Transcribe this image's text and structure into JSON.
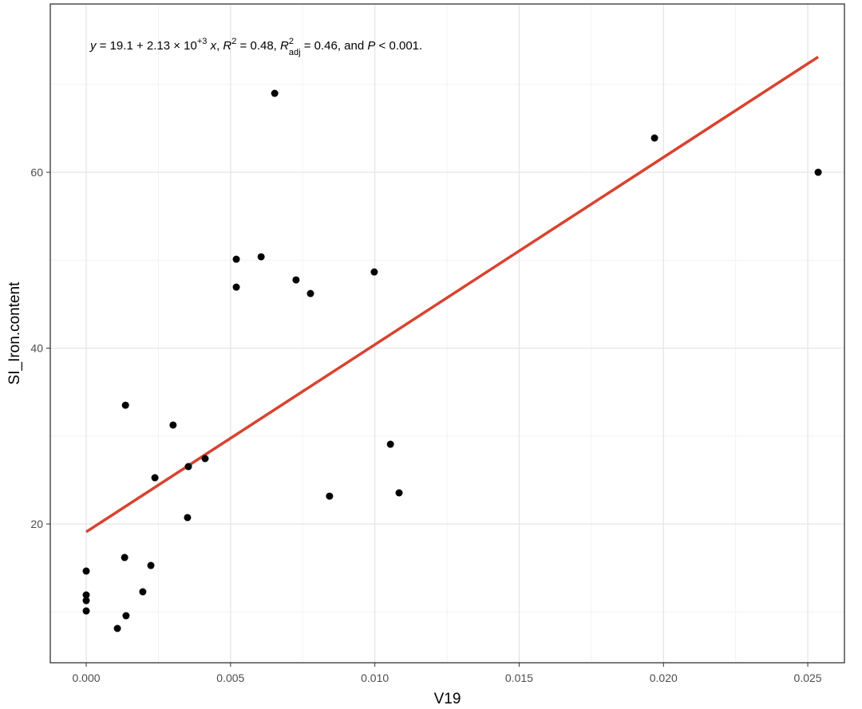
{
  "chart_data": {
    "type": "scatter",
    "x_label": "V19",
    "y_label": "SI_Iron.content",
    "annotation": [
      {
        "text": "y",
        "style": "italic"
      },
      {
        "text": " = 19.1 + 2.13 × 10"
      },
      {
        "text": "+3",
        "style": "sup"
      },
      {
        "text": " "
      },
      {
        "text": "x",
        "style": "italic"
      },
      {
        "text": ", "
      },
      {
        "text": "R",
        "style": "italic"
      },
      {
        "text": "2",
        "style": "sup"
      },
      {
        "text": " = 0.48, "
      },
      {
        "text": "R",
        "style": "italic"
      },
      {
        "text": "2",
        "style": "sup"
      },
      {
        "text": "adj",
        "style": "sub"
      },
      {
        "text": " = 0.46, and "
      },
      {
        "text": "P",
        "style": "italic"
      },
      {
        "text": " < 0.001."
      }
    ],
    "x": [
      0,
      0,
      0,
      0,
      0.00108,
      0.00138,
      0.00133,
      0.00196,
      0.00224,
      0.00136,
      0.00238,
      0.00301,
      0.00354,
      0.00351,
      0.00412,
      0.0052,
      0.0052,
      0.00606,
      0.00653,
      0.00727,
      0.00777,
      0.00843,
      0.00998,
      0.01054,
      0.01084,
      0.01969,
      0.02536
    ],
    "values": [
      14.65,
      11.93,
      11.29,
      10.11,
      8.12,
      9.57,
      16.19,
      12.29,
      15.28,
      33.51,
      25.26,
      31.25,
      26.53,
      20.73,
      27.44,
      50.11,
      46.94,
      50.39,
      68.98,
      47.76,
      46.21,
      23.17,
      48.66,
      29.07,
      23.54,
      63.9,
      60.0
    ],
    "color": "#000000",
    "fit_line": {
      "color": "#d8432f",
      "x": [
        0,
        0.02536
      ],
      "values": [
        19.1,
        73.12
      ]
    },
    "xlim": [
      -0.001245,
      0.02627
    ],
    "ylim": [
      4.22,
      79.14
    ],
    "xticks": [
      {
        "value": 0,
        "label": "0.000"
      },
      {
        "value": 0.005,
        "label": "0.005"
      },
      {
        "value": 0.01,
        "label": "0.010"
      },
      {
        "value": 0.015,
        "label": "0.015"
      },
      {
        "value": 0.02,
        "label": "0.020"
      },
      {
        "value": 0.025,
        "label": "0.025"
      }
    ],
    "yticks": [
      20,
      40,
      60
    ],
    "minor_xticks": [
      0.0025,
      0.0075,
      0.0125,
      0.0175,
      0.0225
    ],
    "minor_yticks": [
      10,
      30,
      50,
      70
    ],
    "grid": true
  }
}
